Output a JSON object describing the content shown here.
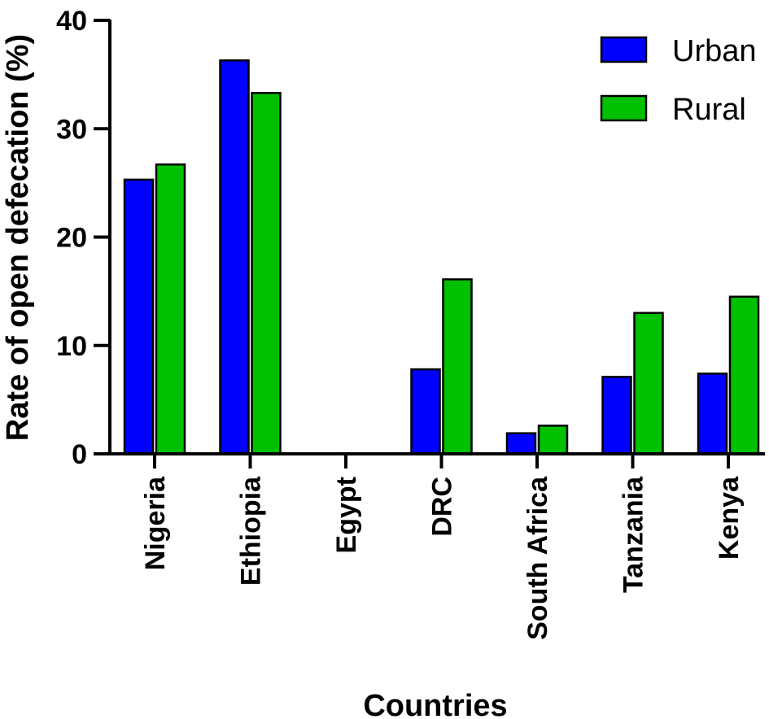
{
  "chart_data": {
    "type": "bar",
    "xlabel": "Countries",
    "ylabel": "Rate of open defecation (%)",
    "ylim": [
      0,
      40
    ],
    "yticks": [
      "0",
      "10",
      "20",
      "30",
      "40"
    ],
    "grid": false,
    "legend_position": "top-right",
    "categories": [
      "Nigeria",
      "Ethiopia",
      "Egypt",
      "DRC",
      "South Africa",
      "Tanzania",
      "Kenya"
    ],
    "series": [
      {
        "name": "Urban",
        "color": "#0000ff",
        "values": [
          25.3,
          36.3,
          0,
          7.8,
          1.9,
          7.1,
          7.4
        ]
      },
      {
        "name": "Rural",
        "color": "#00c000",
        "values": [
          26.7,
          33.3,
          0,
          16.1,
          2.6,
          13.0,
          14.5
        ]
      }
    ]
  }
}
